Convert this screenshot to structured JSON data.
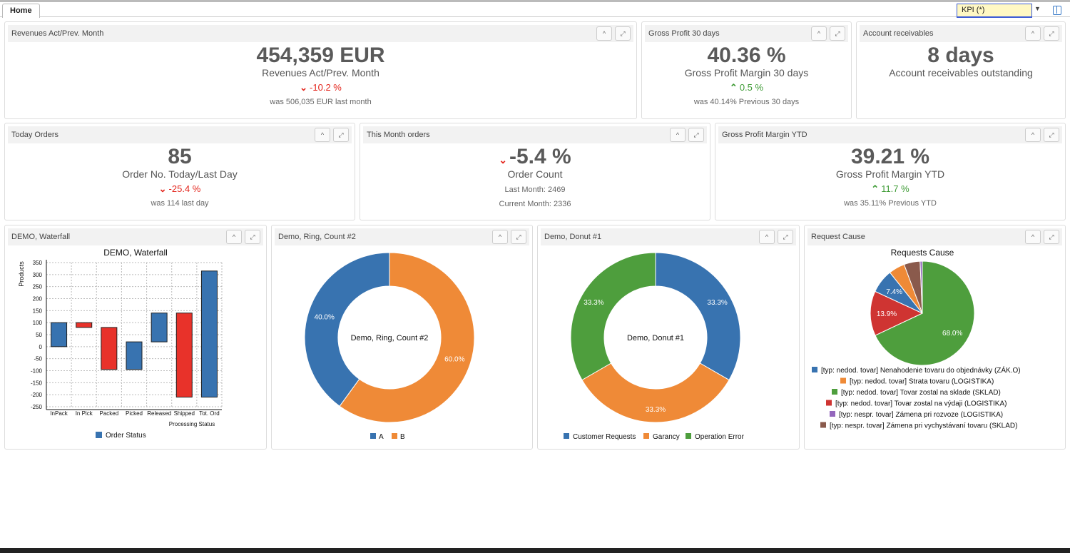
{
  "header": {
    "tab": "Home",
    "kpi_select": "KPI  (*)"
  },
  "panels": {
    "rev": {
      "title": "Revenues Act/Prev. Month",
      "value": "454,359 EUR",
      "subtitle": "Revenues Act/Prev. Month",
      "delta": "-10.2 %",
      "note": "was 506,035 EUR last month"
    },
    "gp30": {
      "title": "Gross Profit 30 days",
      "value": "40.36 %",
      "subtitle": "Gross Profit Margin 30 days",
      "delta": "0.5 %",
      "note": "was 40.14% Previous 30 days"
    },
    "ar": {
      "title": "Account receivables",
      "value": "8 days",
      "subtitle": "Account receivables outstanding"
    },
    "today": {
      "title": "Today Orders",
      "value": "85",
      "subtitle": "Order No. Today/Last Day",
      "delta": "-25.4 %",
      "note": "was 114 last day"
    },
    "month": {
      "title": "This Month orders",
      "value": "-5.4 %",
      "subtitle": "Order Count",
      "note": "Last Month: 2469",
      "note2": "Current Month: 2336"
    },
    "gpytd": {
      "title": "Gross Profit Margin YTD",
      "value": "39.21 %",
      "subtitle": "Gross Profit Margin YTD",
      "delta": "11.7 %",
      "note": "was 35.11% Previous YTD"
    },
    "waterfall": {
      "title": "DEMO, Waterfall"
    },
    "ring": {
      "title": "Demo, Ring, Count #2"
    },
    "donut": {
      "title": "Demo, Donut #1"
    },
    "cause": {
      "title": "Request Cause"
    }
  },
  "colors": {
    "up": "#3c9a33",
    "down": "#e3241b"
  },
  "chart_data": [
    {
      "type": "bar",
      "subtype": "waterfall",
      "title": "DEMO, Waterfall",
      "xlabel": "Processing Status",
      "ylabel": "Products",
      "ylim": [
        -250,
        350
      ],
      "yticks": [
        350,
        300,
        250,
        200,
        150,
        100,
        50,
        0,
        -50,
        -100,
        -150,
        -200,
        -250
      ],
      "grid": true,
      "legend": "bottom",
      "legend_entries": [
        "Order Status"
      ],
      "categories": [
        "InPack",
        "In Pick",
        "Packed",
        "Picked",
        "Released",
        "Shipped",
        "Tot. Ord"
      ],
      "bars": [
        {
          "from": 0,
          "to": 100,
          "color": "#3873b0"
        },
        {
          "from": 100,
          "to": 80,
          "color": "#e8322a"
        },
        {
          "from": 80,
          "to": -95,
          "color": "#e8322a"
        },
        {
          "from": -95,
          "to": 20,
          "color": "#3873b0"
        },
        {
          "from": 20,
          "to": 140,
          "color": "#3873b0"
        },
        {
          "from": 140,
          "to": -210,
          "color": "#e8322a"
        },
        {
          "from": -210,
          "to": 315,
          "color": "#3873b0"
        }
      ]
    },
    {
      "type": "pie",
      "subtype": "donut",
      "center_label": "Demo, Ring, Count #2",
      "legend": "bottom",
      "slices": [
        {
          "label": "B",
          "value": 60.0,
          "text": "60.0%",
          "color": "#ef8a37"
        },
        {
          "label": "A",
          "value": 40.0,
          "text": "40.0%",
          "color": "#3873b0"
        }
      ]
    },
    {
      "type": "pie",
      "subtype": "donut",
      "center_label": "Demo, Donut #1",
      "legend": "bottom",
      "slices": [
        {
          "label": "Customer Requests",
          "value": 33.3,
          "text": "33.3%",
          "color": "#3873b0"
        },
        {
          "label": "Garancy",
          "value": 33.3,
          "text": "33.3%",
          "color": "#ef8a37"
        },
        {
          "label": "Operation Error",
          "value": 33.3,
          "text": "33.3%",
          "color": "#4e9e3d"
        }
      ]
    },
    {
      "type": "pie",
      "title": "Requests Cause",
      "legend": "bottom",
      "slices": [
        {
          "label": "[typ: nedod. tovar] Tovar zostal na sklade (SKLAD)",
          "value": 68.0,
          "text": "68.0%",
          "color": "#4e9e3d"
        },
        {
          "label": "[typ: nedod. tovar] Tovar zostal na výdaji (LOGISTIKA)",
          "value": 13.9,
          "text": "13.9%",
          "color": "#cf3432"
        },
        {
          "label": "[typ: nedod. tovar] Nenahodenie tovaru do objednávky (ZÁK.O)",
          "value": 7.4,
          "text": "7.4%",
          "color": "#3873b0"
        },
        {
          "label": "[typ: nedod. tovar] Strata tovaru (LOGISTIKA)",
          "value": 5.0,
          "text": "",
          "color": "#ef8a37"
        },
        {
          "label": "[typ: nespr. tovar] Zámena pri vychystávaní tovaru (SKLAD)",
          "value": 5.0,
          "text": "",
          "color": "#8a5a4c"
        },
        {
          "label": "[typ: nespr. tovar] Zámena pri rozvoze (LOGISTIKA)",
          "value": 0.7,
          "text": "",
          "color": "#9467bd"
        }
      ],
      "legend_order": [
        2,
        3,
        0,
        1,
        5,
        4
      ]
    }
  ]
}
